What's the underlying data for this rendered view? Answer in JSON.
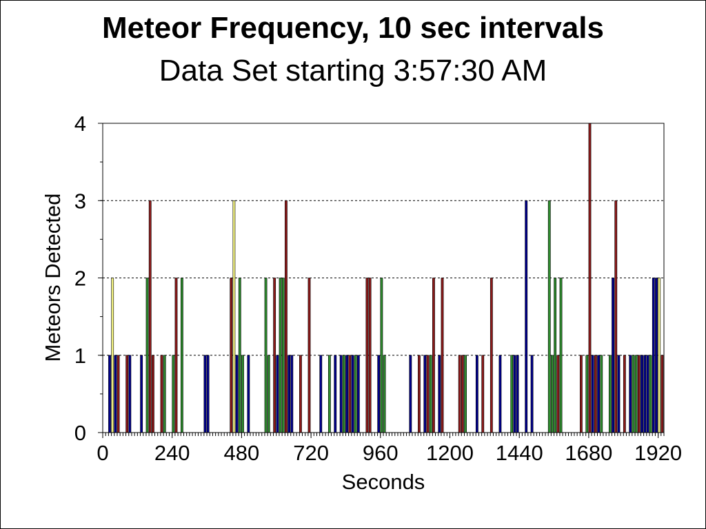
{
  "chart_data": {
    "type": "bar",
    "title": "Meteor Frequency, 10 sec intervals",
    "subtitle": "Data Set starting 3:57:30 AM",
    "xlabel": "Seconds",
    "ylabel": "Meteors Detected",
    "xlim": [
      0,
      1940
    ],
    "ylim": [
      0,
      4
    ],
    "x_ticks": [
      0,
      240,
      480,
      720,
      960,
      1200,
      1440,
      1680,
      1920
    ],
    "y_ticks": [
      0,
      1,
      2,
      3,
      4
    ],
    "grid": "horizontal dashed",
    "bin_width_seconds": 10,
    "colors": {
      "red": "#8b1a1a",
      "blue": "#00008b",
      "green": "#2e8b2e",
      "yellow": "#f0f080"
    },
    "bars": [
      {
        "x": 20,
        "value": 1,
        "color": "blue"
      },
      {
        "x": 30,
        "value": 2,
        "color": "yellow"
      },
      {
        "x": 40,
        "value": 1,
        "color": "blue"
      },
      {
        "x": 50,
        "value": 1,
        "color": "red"
      },
      {
        "x": 80,
        "value": 1,
        "color": "red"
      },
      {
        "x": 90,
        "value": 1,
        "color": "blue"
      },
      {
        "x": 130,
        "value": 1,
        "color": "blue"
      },
      {
        "x": 150,
        "value": 2,
        "color": "green"
      },
      {
        "x": 160,
        "value": 3,
        "color": "red"
      },
      {
        "x": 170,
        "value": 1,
        "color": "red"
      },
      {
        "x": 200,
        "value": 1,
        "color": "red"
      },
      {
        "x": 210,
        "value": 1,
        "color": "green"
      },
      {
        "x": 240,
        "value": 1,
        "color": "green"
      },
      {
        "x": 250,
        "value": 2,
        "color": "red"
      },
      {
        "x": 270,
        "value": 2,
        "color": "green"
      },
      {
        "x": 350,
        "value": 1,
        "color": "blue"
      },
      {
        "x": 360,
        "value": 1,
        "color": "blue"
      },
      {
        "x": 440,
        "value": 2,
        "color": "red"
      },
      {
        "x": 450,
        "value": 3,
        "color": "yellow"
      },
      {
        "x": 460,
        "value": 1,
        "color": "blue"
      },
      {
        "x": 470,
        "value": 2,
        "color": "green"
      },
      {
        "x": 480,
        "value": 1,
        "color": "green"
      },
      {
        "x": 500,
        "value": 1,
        "color": "blue"
      },
      {
        "x": 560,
        "value": 2,
        "color": "green"
      },
      {
        "x": 570,
        "value": 1,
        "color": "green"
      },
      {
        "x": 590,
        "value": 2,
        "color": "red"
      },
      {
        "x": 600,
        "value": 1,
        "color": "blue"
      },
      {
        "x": 610,
        "value": 2,
        "color": "green"
      },
      {
        "x": 620,
        "value": 2,
        "color": "green"
      },
      {
        "x": 630,
        "value": 3,
        "color": "red"
      },
      {
        "x": 640,
        "value": 1,
        "color": "blue"
      },
      {
        "x": 650,
        "value": 1,
        "color": "blue"
      },
      {
        "x": 680,
        "value": 1,
        "color": "red"
      },
      {
        "x": 710,
        "value": 2,
        "color": "red"
      },
      {
        "x": 750,
        "value": 1,
        "color": "blue"
      },
      {
        "x": 780,
        "value": 1,
        "color": "green"
      },
      {
        "x": 800,
        "value": 1,
        "color": "blue"
      },
      {
        "x": 820,
        "value": 1,
        "color": "blue"
      },
      {
        "x": 830,
        "value": 1,
        "color": "green"
      },
      {
        "x": 840,
        "value": 1,
        "color": "blue"
      },
      {
        "x": 850,
        "value": 1,
        "color": "red"
      },
      {
        "x": 860,
        "value": 1,
        "color": "blue"
      },
      {
        "x": 870,
        "value": 1,
        "color": "green"
      },
      {
        "x": 880,
        "value": 1,
        "color": "blue"
      },
      {
        "x": 910,
        "value": 2,
        "color": "red"
      },
      {
        "x": 920,
        "value": 2,
        "color": "red"
      },
      {
        "x": 950,
        "value": 1,
        "color": "blue"
      },
      {
        "x": 960,
        "value": 2,
        "color": "green"
      },
      {
        "x": 970,
        "value": 1,
        "color": "green"
      },
      {
        "x": 1060,
        "value": 1,
        "color": "blue"
      },
      {
        "x": 1090,
        "value": 1,
        "color": "red"
      },
      {
        "x": 1110,
        "value": 1,
        "color": "blue"
      },
      {
        "x": 1120,
        "value": 1,
        "color": "red"
      },
      {
        "x": 1130,
        "value": 1,
        "color": "green"
      },
      {
        "x": 1140,
        "value": 2,
        "color": "red"
      },
      {
        "x": 1160,
        "value": 1,
        "color": "blue"
      },
      {
        "x": 1170,
        "value": 2,
        "color": "red"
      },
      {
        "x": 1230,
        "value": 1,
        "color": "red"
      },
      {
        "x": 1240,
        "value": 1,
        "color": "red"
      },
      {
        "x": 1250,
        "value": 1,
        "color": "green"
      },
      {
        "x": 1290,
        "value": 1,
        "color": "blue"
      },
      {
        "x": 1310,
        "value": 1,
        "color": "red"
      },
      {
        "x": 1340,
        "value": 2,
        "color": "red"
      },
      {
        "x": 1370,
        "value": 1,
        "color": "blue"
      },
      {
        "x": 1410,
        "value": 1,
        "color": "green"
      },
      {
        "x": 1420,
        "value": 1,
        "color": "blue"
      },
      {
        "x": 1430,
        "value": 1,
        "color": "blue"
      },
      {
        "x": 1460,
        "value": 3,
        "color": "blue"
      },
      {
        "x": 1480,
        "value": 1,
        "color": "blue"
      },
      {
        "x": 1540,
        "value": 3,
        "color": "green"
      },
      {
        "x": 1550,
        "value": 1,
        "color": "green"
      },
      {
        "x": 1560,
        "value": 2,
        "color": "green"
      },
      {
        "x": 1570,
        "value": 1,
        "color": "red"
      },
      {
        "x": 1580,
        "value": 2,
        "color": "green"
      },
      {
        "x": 1650,
        "value": 1,
        "color": "red"
      },
      {
        "x": 1670,
        "value": 1,
        "color": "green"
      },
      {
        "x": 1680,
        "value": 4,
        "color": "red"
      },
      {
        "x": 1690,
        "value": 1,
        "color": "blue"
      },
      {
        "x": 1700,
        "value": 1,
        "color": "red"
      },
      {
        "x": 1710,
        "value": 1,
        "color": "blue"
      },
      {
        "x": 1720,
        "value": 1,
        "color": "green"
      },
      {
        "x": 1750,
        "value": 1,
        "color": "green"
      },
      {
        "x": 1760,
        "value": 2,
        "color": "blue"
      },
      {
        "x": 1770,
        "value": 3,
        "color": "red"
      },
      {
        "x": 1780,
        "value": 1,
        "color": "blue"
      },
      {
        "x": 1800,
        "value": 1,
        "color": "red"
      },
      {
        "x": 1820,
        "value": 1,
        "color": "blue"
      },
      {
        "x": 1830,
        "value": 1,
        "color": "green"
      },
      {
        "x": 1840,
        "value": 1,
        "color": "green"
      },
      {
        "x": 1850,
        "value": 1,
        "color": "red"
      },
      {
        "x": 1860,
        "value": 1,
        "color": "blue"
      },
      {
        "x": 1870,
        "value": 1,
        "color": "blue"
      },
      {
        "x": 1880,
        "value": 1,
        "color": "blue"
      },
      {
        "x": 1890,
        "value": 1,
        "color": "green"
      },
      {
        "x": 1900,
        "value": 2,
        "color": "blue"
      },
      {
        "x": 1910,
        "value": 2,
        "color": "blue"
      },
      {
        "x": 1920,
        "value": 2,
        "color": "yellow"
      },
      {
        "x": 1930,
        "value": 1,
        "color": "red"
      }
    ]
  }
}
